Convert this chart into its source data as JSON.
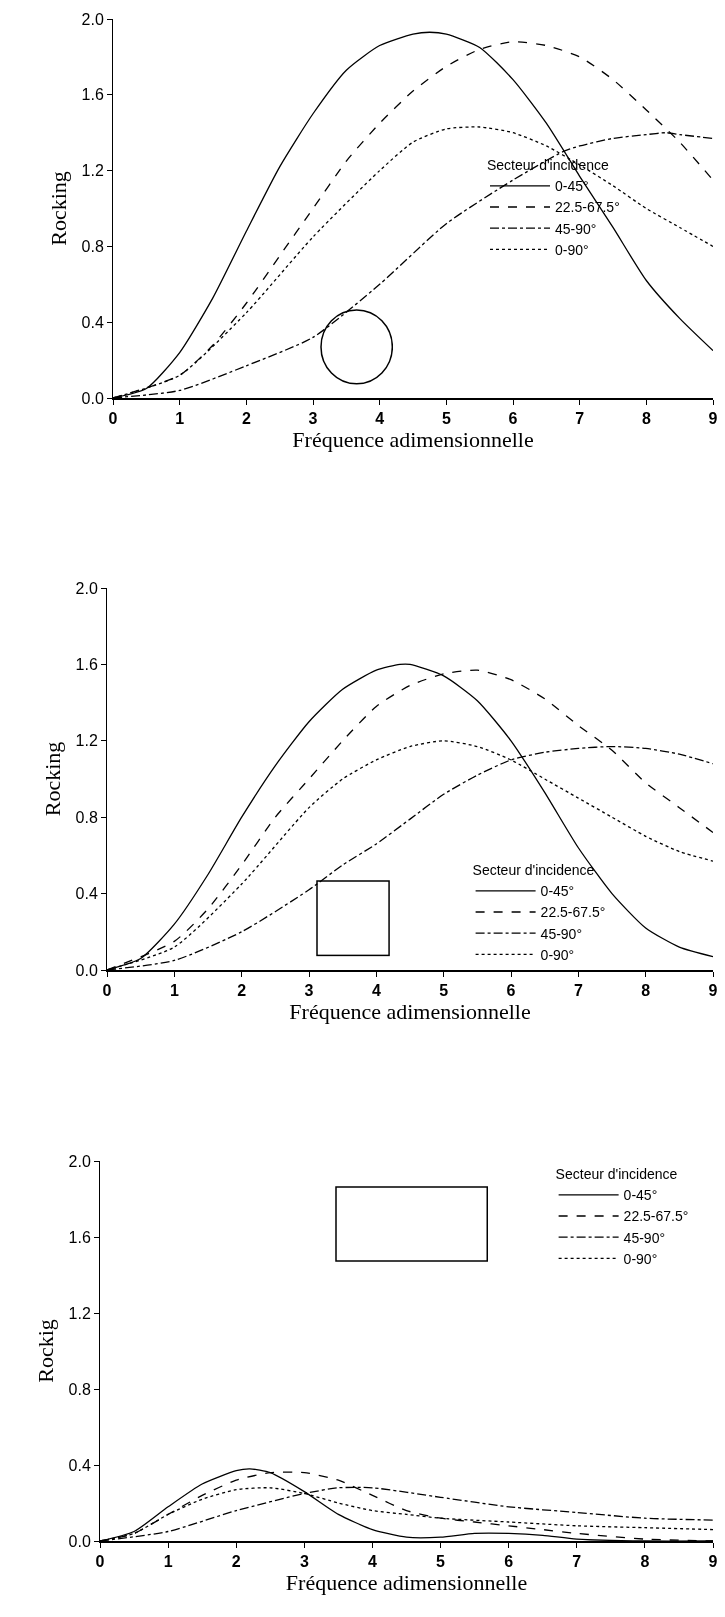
{
  "chart_data": [
    {
      "type": "line",
      "xlabel": "Fréquence adimensionnelle",
      "ylabel": "Rocking",
      "legend_title": "Secteur d'incidence",
      "legend": "right",
      "grid": false,
      "xlim": [
        0,
        9
      ],
      "ylim": [
        0,
        2
      ],
      "xticks": [
        0,
        1,
        2,
        3,
        4,
        5,
        6,
        7,
        8,
        9
      ],
      "yticks": [
        {
          "value": 0,
          "label": "0.0"
        },
        {
          "value": 0.4,
          "label": "0.4"
        },
        {
          "value": 0.8,
          "label": "0.8"
        },
        {
          "value": 1.2,
          "label": "1.2"
        },
        {
          "value": 1.6,
          "label": "1.6"
        },
        {
          "value": 2,
          "label": "2.0"
        }
      ],
      "series": [
        {
          "name": "0-45°",
          "color": "#000000",
          "line_style": "solid",
          "x": [
            0,
            0.5,
            1,
            1.5,
            2,
            2.5,
            3,
            3.5,
            4,
            4.5,
            4.75,
            5,
            5.5,
            6,
            6.5,
            7,
            7.5,
            8,
            8.5,
            9
          ],
          "values": [
            0,
            0.05,
            0.24,
            0.53,
            0.88,
            1.22,
            1.5,
            1.73,
            1.86,
            1.92,
            1.93,
            1.92,
            1.85,
            1.68,
            1.45,
            1.17,
            0.9,
            0.62,
            0.42,
            0.25
          ]
        },
        {
          "name": "22.5-67.5°",
          "color": "#000000",
          "line_style": "dashed",
          "x": [
            0,
            1,
            1.5,
            2,
            2.5,
            3,
            3.5,
            4,
            4.5,
            5,
            5.5,
            6,
            6.5,
            7,
            7.5,
            8,
            8.5,
            9
          ],
          "values": [
            0,
            0.12,
            0.28,
            0.5,
            0.75,
            1.0,
            1.25,
            1.45,
            1.62,
            1.75,
            1.84,
            1.88,
            1.86,
            1.8,
            1.68,
            1.52,
            1.35,
            1.15
          ]
        },
        {
          "name": "45-90°",
          "color": "#000000",
          "line_style": "dashdot",
          "x": [
            0,
            1,
            2,
            3,
            4,
            5,
            6,
            6.75,
            7,
            7.5,
            8,
            8.3,
            8.5,
            9
          ],
          "values": [
            0,
            0.04,
            0.17,
            0.32,
            0.6,
            0.92,
            1.15,
            1.3,
            1.33,
            1.37,
            1.39,
            1.4,
            1.39,
            1.37
          ]
        },
        {
          "name": "0-90°",
          "color": "#000000",
          "line_style": "dotted",
          "x": [
            0,
            1,
            2,
            3,
            4,
            4.5,
            5,
            5.5,
            6,
            6.5,
            7,
            7.5,
            8,
            8.5,
            9
          ],
          "values": [
            0,
            0.12,
            0.45,
            0.85,
            1.2,
            1.35,
            1.42,
            1.43,
            1.4,
            1.33,
            1.23,
            1.12,
            1.0,
            0.9,
            0.8
          ]
        }
      ]
    },
    {
      "type": "line",
      "xlabel": "Fréquence adimensionnelle",
      "ylabel": "Rocking",
      "legend_title": "Secteur d'incidence",
      "legend": "bottom right",
      "grid": false,
      "xlim": [
        0,
        9
      ],
      "ylim": [
        0,
        2
      ],
      "xticks": [
        0,
        1,
        2,
        3,
        4,
        5,
        6,
        7,
        8,
        9
      ],
      "yticks": [
        {
          "value": 0,
          "label": "0.0"
        },
        {
          "value": 0.4,
          "label": "0.4"
        },
        {
          "value": 0.8,
          "label": "0.8"
        },
        {
          "value": 1.2,
          "label": "1.2"
        },
        {
          "value": 1.6,
          "label": "1.6"
        },
        {
          "value": 2,
          "label": "2.0"
        }
      ],
      "series": [
        {
          "name": "0-45°",
          "color": "#000000",
          "line_style": "solid",
          "x": [
            0,
            0.5,
            1,
            1.5,
            2,
            2.5,
            3,
            3.5,
            4,
            4.35,
            4.5,
            5,
            5.5,
            6,
            6.5,
            7,
            7.5,
            8,
            8.5,
            9
          ],
          "values": [
            0,
            0.06,
            0.24,
            0.5,
            0.8,
            1.07,
            1.3,
            1.47,
            1.57,
            1.6,
            1.6,
            1.54,
            1.41,
            1.2,
            0.93,
            0.64,
            0.4,
            0.22,
            0.12,
            0.07
          ]
        },
        {
          "name": "22.5-67.5°",
          "color": "#000000",
          "line_style": "dashed",
          "x": [
            0,
            1,
            1.5,
            2,
            2.5,
            3,
            3.5,
            4,
            4.5,
            5,
            5.5,
            6,
            6.5,
            7,
            7.5,
            8,
            8.5,
            9
          ],
          "values": [
            0,
            0.15,
            0.32,
            0.55,
            0.8,
            1.0,
            1.2,
            1.38,
            1.49,
            1.55,
            1.57,
            1.52,
            1.42,
            1.28,
            1.15,
            0.98,
            0.85,
            0.72
          ]
        },
        {
          "name": "45-90°",
          "color": "#000000",
          "line_style": "dashdot",
          "x": [
            0,
            1,
            2,
            3,
            3.5,
            4,
            4.5,
            5,
            5.5,
            6,
            6.5,
            7,
            7.5,
            8,
            8.5,
            9
          ],
          "values": [
            0,
            0.05,
            0.2,
            0.42,
            0.55,
            0.66,
            0.79,
            0.92,
            1.02,
            1.1,
            1.14,
            1.16,
            1.17,
            1.16,
            1.13,
            1.08
          ]
        },
        {
          "name": "0-90°",
          "color": "#000000",
          "line_style": "dotted",
          "x": [
            0,
            1,
            2,
            3,
            3.5,
            4,
            4.5,
            5,
            5.5,
            6,
            6.5,
            7,
            7.5,
            8,
            8.5,
            9
          ],
          "values": [
            0,
            0.12,
            0.45,
            0.85,
            1.0,
            1.1,
            1.17,
            1.2,
            1.17,
            1.1,
            1.0,
            0.9,
            0.8,
            0.7,
            0.62,
            0.57
          ]
        }
      ]
    },
    {
      "type": "line",
      "xlabel": "Fréquence adimensionnelle",
      "ylabel": "Rockig",
      "legend_title": "Secteur d'incidence",
      "legend": "top right",
      "grid": false,
      "xlim": [
        0,
        9
      ],
      "ylim": [
        0,
        2
      ],
      "xticks": [
        0,
        1,
        2,
        3,
        4,
        5,
        6,
        7,
        8,
        9
      ],
      "yticks": [
        {
          "value": 0,
          "label": "0.0"
        },
        {
          "value": 0.4,
          "label": "0.4"
        },
        {
          "value": 0.8,
          "label": "0.8"
        },
        {
          "value": 1.2,
          "label": "1.2"
        },
        {
          "value": 1.6,
          "label": "1.6"
        },
        {
          "value": 2,
          "label": "2.0"
        }
      ],
      "series": [
        {
          "name": "0-45°",
          "color": "#000000",
          "line_style": "solid",
          "x": [
            0,
            0.5,
            1,
            1.5,
            2,
            2.2,
            2.5,
            3,
            3.5,
            4,
            4.5,
            5,
            5.5,
            6,
            6.5,
            7,
            8,
            9
          ],
          "values": [
            0,
            0.05,
            0.18,
            0.3,
            0.37,
            0.38,
            0.36,
            0.26,
            0.14,
            0.06,
            0.02,
            0.02,
            0.04,
            0.04,
            0.03,
            0.01,
            0,
            0
          ]
        },
        {
          "name": "22.5-67.5°",
          "color": "#000000",
          "line_style": "dashed",
          "x": [
            0,
            0.5,
            1,
            1.5,
            2,
            2.5,
            3,
            3.5,
            4,
            4.5,
            5,
            5.5,
            6,
            6.5,
            7,
            8,
            9
          ],
          "values": [
            0,
            0.04,
            0.14,
            0.24,
            0.32,
            0.36,
            0.36,
            0.32,
            0.24,
            0.16,
            0.12,
            0.1,
            0.08,
            0.06,
            0.04,
            0.01,
            0
          ]
        },
        {
          "name": "45-90°",
          "color": "#000000",
          "line_style": "dashdot",
          "x": [
            0,
            1,
            2,
            3,
            3.5,
            4,
            5,
            6,
            7,
            8,
            9
          ],
          "values": [
            0,
            0.05,
            0.16,
            0.25,
            0.28,
            0.28,
            0.23,
            0.18,
            0.15,
            0.12,
            0.11
          ]
        },
        {
          "name": "0-90°",
          "color": "#000000",
          "line_style": "dotted",
          "x": [
            0,
            0.5,
            1,
            1.5,
            2,
            2.5,
            3,
            3.5,
            4,
            4.5,
            5,
            6,
            7,
            8,
            9
          ],
          "values": [
            0,
            0.04,
            0.14,
            0.22,
            0.27,
            0.28,
            0.25,
            0.2,
            0.16,
            0.14,
            0.12,
            0.1,
            0.08,
            0.07,
            0.06
          ]
        }
      ]
    }
  ]
}
